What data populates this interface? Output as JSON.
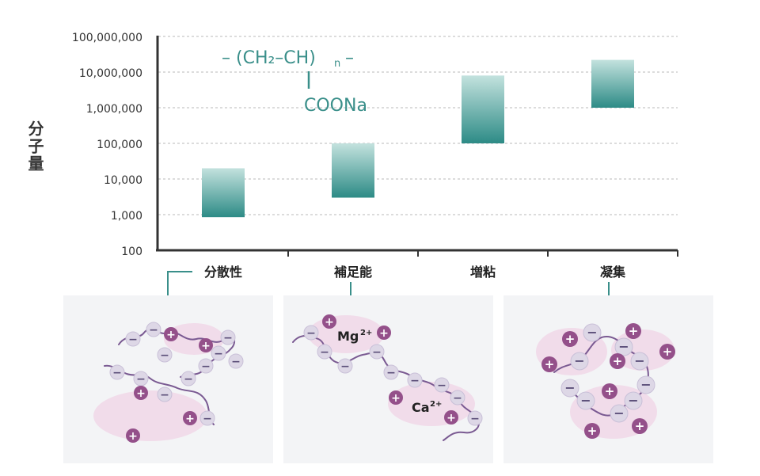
{
  "chart_data": {
    "type": "bar",
    "y_scale": "log",
    "ylim": [
      100,
      100000000
    ],
    "ylabel": "分子量",
    "ytick_labels": [
      "100",
      "1,000",
      "10,000",
      "100,000",
      "1,000,000",
      "10,000,000",
      "100,000,000"
    ],
    "grid": true,
    "categories": [
      "分散性",
      "補足能",
      "増粘",
      "凝集"
    ],
    "ranges": [
      {
        "low": 850,
        "high": 20000
      },
      {
        "low": 3000,
        "high": 100000
      },
      {
        "low": 100000,
        "high": 8000000
      },
      {
        "low": 1000000,
        "high": 22000000
      }
    ]
  },
  "formula": {
    "main": "(CH₂–CH)",
    "subscript": "n",
    "dash": "–",
    "branch": "COONa"
  },
  "illustrations": {
    "mg_label": "Mg",
    "mg_charge": "2+",
    "ca_label": "Ca",
    "ca_charge": "2+",
    "plus_sign": "+",
    "minus_sign": "−"
  },
  "colors": {
    "bar_top": "#c3e2de",
    "bar_bottom": "#2d8b86",
    "formula": "#3a8f8a",
    "arrow": "#3a8f8a",
    "axis": "#333333",
    "panel_bg": "#f3f4f6",
    "blob": "#f1dcea",
    "chain": "#7a5a92",
    "minus_fill": "#ddd7e6",
    "minus_text": "#5a4d78",
    "plus_fill": "#94508a"
  }
}
